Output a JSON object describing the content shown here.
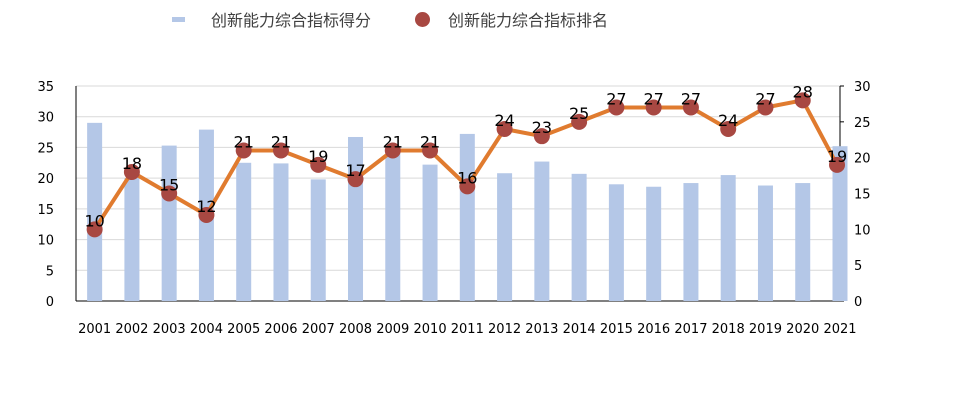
{
  "chart_data": {
    "type": "bar+line",
    "categories": [
      "2001",
      "2002",
      "2003",
      "2004",
      "2005",
      "2006",
      "2007",
      "2008",
      "2009",
      "2010",
      "2011",
      "2012",
      "2013",
      "2014",
      "2015",
      "2016",
      "2017",
      "2018",
      "2019",
      "2020",
      "2021"
    ],
    "series": [
      {
        "name": "创新能力综合指标得分",
        "type": "bar",
        "axis": "left",
        "color": "#b4c7e7",
        "values": [
          29.0,
          20.0,
          25.3,
          27.9,
          22.5,
          22.4,
          19.8,
          26.7,
          24.6,
          22.2,
          27.2,
          20.8,
          22.7,
          20.7,
          19.0,
          18.6,
          19.2,
          20.5,
          18.8,
          19.2,
          25.2
        ]
      },
      {
        "name": "创新能力综合指标排名",
        "type": "line",
        "axis": "right",
        "color": "#e07b2f",
        "marker_color": "#a84842",
        "values": [
          10,
          18,
          15,
          12,
          21,
          21,
          19,
          17,
          21,
          21,
          16,
          24,
          23,
          25,
          27,
          27,
          27,
          24,
          27,
          28,
          19
        ]
      }
    ],
    "y_left": {
      "ylim": [
        0,
        35
      ],
      "ticks": [
        "0",
        "5",
        "10",
        "15",
        "20",
        "25",
        "30",
        "35"
      ]
    },
    "y_right": {
      "ylim": [
        0,
        30
      ],
      "ticks": [
        "0",
        "5",
        "10",
        "15",
        "20",
        "25",
        "30"
      ]
    },
    "grid": true,
    "legend_position": "top"
  }
}
